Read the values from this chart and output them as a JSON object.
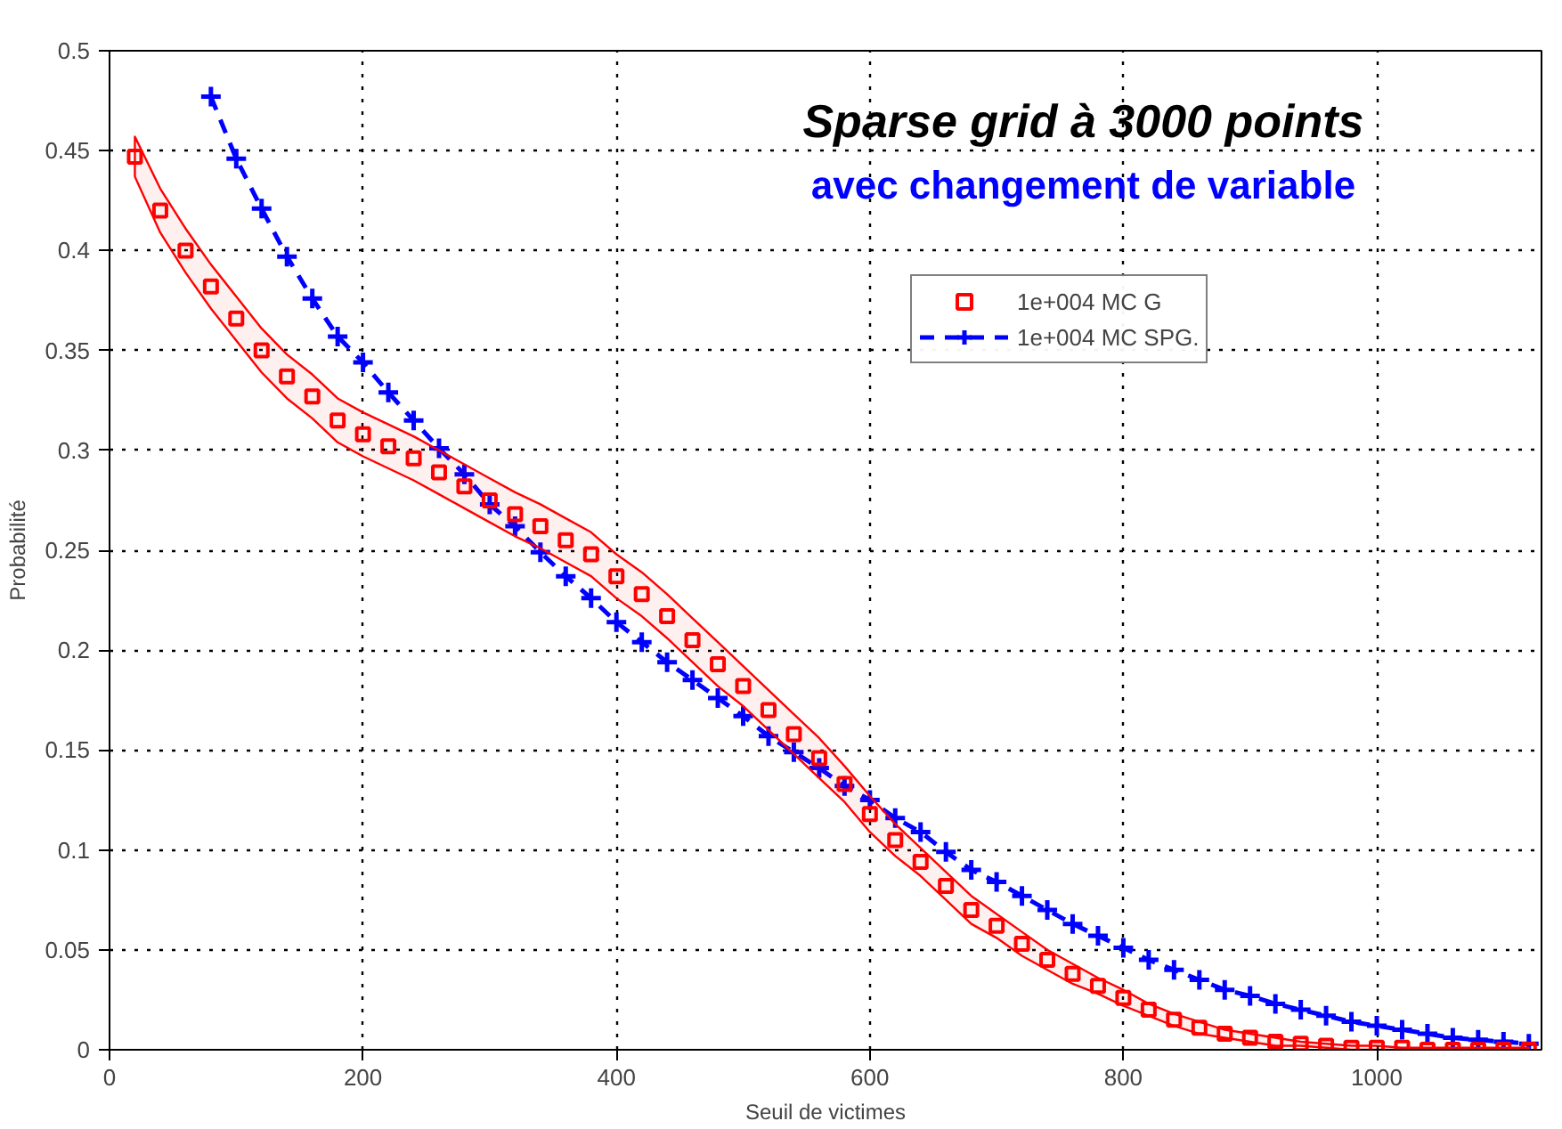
{
  "chart_data": {
    "type": "scatter",
    "title": "Sparse grid à 3000 points",
    "subtitle": "avec changement de variable",
    "xlabel": "Seuil de victimes",
    "ylabel": "Probabilité",
    "xlim": [
      0,
      1130
    ],
    "ylim": [
      0,
      0.5
    ],
    "xticks": [
      0,
      200,
      400,
      600,
      800,
      1000
    ],
    "yticks": [
      0,
      0.05,
      0.1,
      0.15,
      0.2,
      0.25,
      0.3,
      0.35,
      0.4,
      0.45,
      0.5
    ],
    "grid": true,
    "legend": "top right",
    "series": [
      {
        "name": "1e+004 MC G",
        "marker": "square",
        "color": "#ff0000",
        "x": [
          20,
          40,
          60,
          80,
          100,
          120,
          140,
          160,
          180,
          200,
          220,
          240,
          260,
          280,
          300,
          320,
          340,
          360,
          380,
          400,
          420,
          440,
          460,
          480,
          500,
          520,
          540,
          560,
          580,
          600,
          620,
          640,
          660,
          680,
          700,
          720,
          740,
          760,
          780,
          800,
          820,
          840,
          860,
          880,
          900,
          920,
          940,
          960,
          980,
          1000,
          1020,
          1040,
          1060,
          1080,
          1100,
          1120
        ],
        "values": [
          0.447,
          0.42,
          0.4,
          0.382,
          0.366,
          0.35,
          0.337,
          0.327,
          0.315,
          0.308,
          0.302,
          0.296,
          0.289,
          0.282,
          0.275,
          0.268,
          0.262,
          0.255,
          0.248,
          0.237,
          0.228,
          0.217,
          0.205,
          0.193,
          0.182,
          0.17,
          0.158,
          0.146,
          0.133,
          0.118,
          0.105,
          0.094,
          0.082,
          0.07,
          0.062,
          0.053,
          0.045,
          0.038,
          0.032,
          0.026,
          0.02,
          0.015,
          0.011,
          0.008,
          0.006,
          0.004,
          0.003,
          0.002,
          0.001,
          0.001,
          0.001,
          0,
          0,
          0,
          0,
          0
        ],
        "upper": [
          0.457,
          0.431,
          0.411,
          0.393,
          0.377,
          0.361,
          0.348,
          0.338,
          0.326,
          0.319,
          0.313,
          0.307,
          0.3,
          0.293,
          0.286,
          0.279,
          0.273,
          0.266,
          0.259,
          0.248,
          0.239,
          0.228,
          0.216,
          0.204,
          0.192,
          0.18,
          0.168,
          0.156,
          0.142,
          0.127,
          0.113,
          0.101,
          0.089,
          0.077,
          0.068,
          0.059,
          0.05,
          0.043,
          0.036,
          0.03,
          0.023,
          0.018,
          0.014,
          0.01,
          0.008,
          0.006,
          0.004,
          0.003,
          0.002,
          0.002,
          0.001,
          0.001,
          0.001,
          0.001,
          0.001,
          0.001
        ],
        "lower": [
          0.437,
          0.409,
          0.389,
          0.371,
          0.355,
          0.339,
          0.326,
          0.316,
          0.304,
          0.297,
          0.291,
          0.285,
          0.278,
          0.271,
          0.264,
          0.257,
          0.251,
          0.244,
          0.237,
          0.226,
          0.217,
          0.206,
          0.194,
          0.182,
          0.172,
          0.16,
          0.148,
          0.136,
          0.124,
          0.109,
          0.097,
          0.087,
          0.075,
          0.063,
          0.056,
          0.047,
          0.04,
          0.033,
          0.028,
          0.022,
          0.017,
          0.012,
          0.008,
          0.006,
          0.004,
          0.002,
          0.002,
          0.001,
          0,
          0,
          0,
          0,
          0,
          0,
          0,
          0
        ]
      },
      {
        "name": "1e+004 MC SPG.",
        "type": "line",
        "marker": "cross",
        "line_style": "dashed",
        "color": "#0000ff",
        "x": [
          80,
          100,
          120,
          140,
          160,
          180,
          200,
          220,
          240,
          260,
          280,
          300,
          320,
          340,
          360,
          380,
          400,
          420,
          440,
          460,
          480,
          500,
          520,
          540,
          560,
          580,
          600,
          620,
          640,
          660,
          680,
          700,
          720,
          740,
          760,
          780,
          800,
          820,
          840,
          860,
          880,
          900,
          920,
          940,
          960,
          980,
          1000,
          1020,
          1040,
          1060,
          1080,
          1100,
          1120
        ],
        "values": [
          0.477,
          0.446,
          0.421,
          0.397,
          0.376,
          0.357,
          0.344,
          0.329,
          0.315,
          0.301,
          0.288,
          0.273,
          0.262,
          0.249,
          0.237,
          0.226,
          0.214,
          0.204,
          0.194,
          0.185,
          0.176,
          0.167,
          0.157,
          0.149,
          0.141,
          0.132,
          0.125,
          0.116,
          0.109,
          0.099,
          0.09,
          0.084,
          0.077,
          0.07,
          0.063,
          0.057,
          0.051,
          0.045,
          0.04,
          0.035,
          0.03,
          0.027,
          0.023,
          0.02,
          0.017,
          0.014,
          0.012,
          0.01,
          0.008,
          0.006,
          0.005,
          0.004,
          0.003
        ]
      }
    ]
  }
}
